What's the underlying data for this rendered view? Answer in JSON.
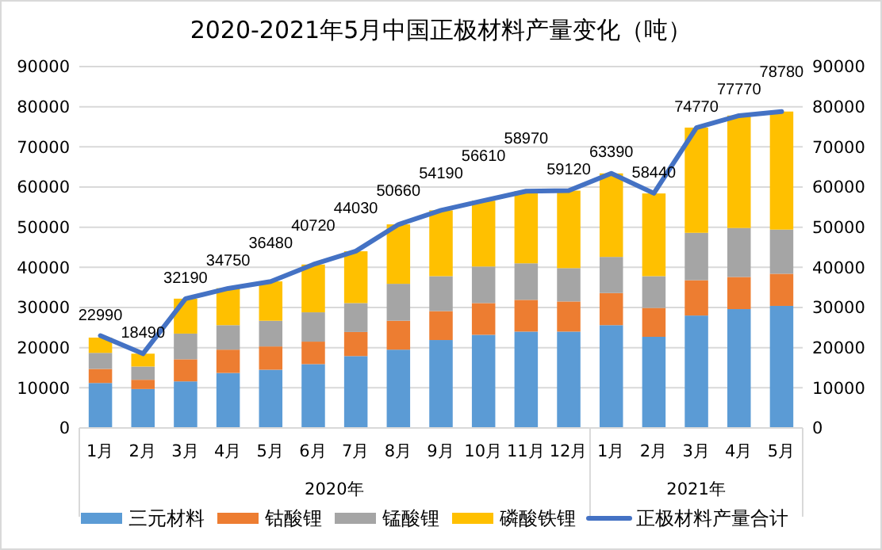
{
  "chart_data": {
    "type": "bar",
    "stacked": true,
    "title": "2020-2021年5月中国正极材料产量变化（吨）",
    "categories": [
      "1月",
      "2月",
      "3月",
      "4月",
      "5月",
      "6月",
      "7月",
      "8月",
      "9月",
      "10月",
      "11月",
      "12月",
      "1月",
      "2月",
      "3月",
      "4月",
      "5月"
    ],
    "annotations": [
      "2020年",
      "2021年"
    ],
    "series": [
      {
        "name": "三元材料",
        "color": "#5b9bd5",
        "values": [
          11200,
          9700,
          11600,
          13700,
          14500,
          15900,
          17900,
          19500,
          21900,
          23200,
          24000,
          24000,
          25600,
          22700,
          28000,
          29600,
          30400
        ]
      },
      {
        "name": "钴酸锂",
        "color": "#ed7d31",
        "values": [
          3500,
          2300,
          5500,
          5800,
          5800,
          5600,
          6000,
          7200,
          7200,
          7900,
          7900,
          7500,
          8000,
          7200,
          8800,
          8000,
          8000
        ]
      },
      {
        "name": "锰酸锂",
        "color": "#a5a5a5",
        "values": [
          4000,
          3300,
          6400,
          6100,
          6400,
          7300,
          7200,
          9200,
          8700,
          9100,
          9100,
          8300,
          9000,
          7900,
          11800,
          12200,
          11000
        ]
      },
      {
        "name": "磷酸铁锂",
        "color": "#ffc000",
        "values": [
          3800,
          3200,
          8700,
          9200,
          9800,
          11900,
          12900,
          14800,
          16400,
          16400,
          18000,
          19300,
          20800,
          20600,
          26200,
          28000,
          29400
        ]
      },
      {
        "name": "正极材料产量合计",
        "type": "line",
        "axis": "y2",
        "color": "#4472c4",
        "values": [
          22990,
          18490,
          32190,
          34750,
          36480,
          40720,
          44030,
          50660,
          54190,
          56610,
          58970,
          59120,
          63390,
          58440,
          74770,
          77770,
          78780
        ],
        "value_labels": [
          "22990",
          "18490",
          "32190",
          "34750",
          "36480",
          "40720",
          "44030",
          "50660",
          "54190",
          "56610",
          "58970",
          "59120",
          "63390",
          "58440",
          "74770",
          "77770",
          "78780"
        ]
      }
    ],
    "ylim": [
      0,
      90000
    ],
    "yticks": [
      0,
      10000,
      20000,
      30000,
      40000,
      50000,
      60000,
      70000,
      80000,
      90000
    ],
    "y2lim": [
      0,
      90000
    ],
    "y2ticks": [
      0,
      10000,
      20000,
      30000,
      40000,
      50000,
      60000,
      70000,
      80000,
      90000
    ],
    "grid": "y",
    "legend": "bottom",
    "marker": "none",
    "line_style": "solid"
  }
}
